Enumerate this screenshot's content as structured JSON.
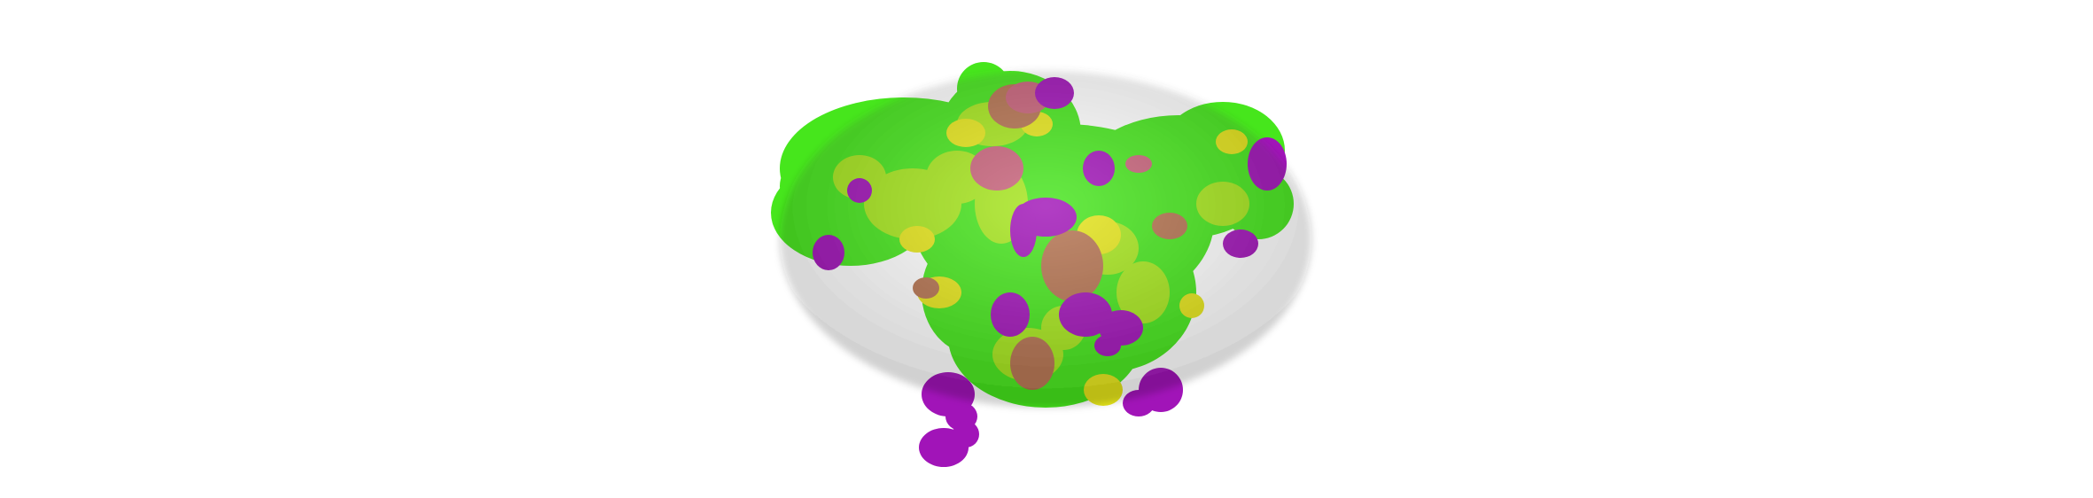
{
  "scene": {
    "kind": "protein-surface-render",
    "background_color": "#ffffff",
    "palette": {
      "green": "#46e61c",
      "lime": "#a6e61c",
      "yellow": "#e5e51a",
      "magenta": "#a114b8",
      "pink": "#c8627a",
      "brown": "#b57350"
    }
  }
}
